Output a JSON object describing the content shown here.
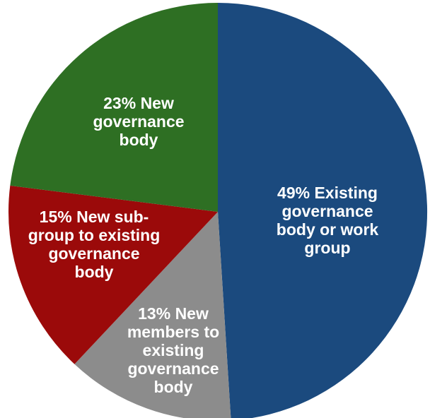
{
  "chart_data": {
    "type": "pie",
    "slices": [
      {
        "label": [
          "49% Existing",
          "governance",
          "body or work",
          "group"
        ],
        "value": 49,
        "color": "#1b4a7e"
      },
      {
        "label": [
          "13% New",
          "members to",
          "existing",
          "governance",
          "body"
        ],
        "value": 13,
        "color": "#8c8c8c"
      },
      {
        "label": [
          "15% New sub-",
          "group to existing",
          "governance",
          "body"
        ],
        "value": 15,
        "color": "#9b0a0a"
      },
      {
        "label": [
          "23% New",
          "governance",
          "body"
        ],
        "value": 23,
        "color": "#2e6f23"
      }
    ]
  }
}
